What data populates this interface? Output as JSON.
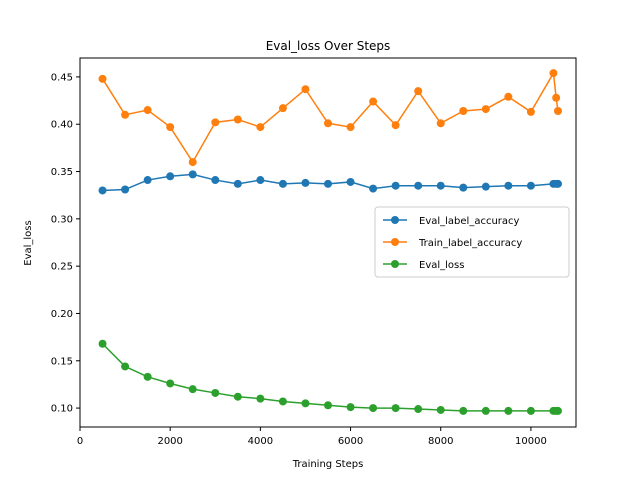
{
  "chart_data": {
    "type": "line",
    "title": "Eval_loss Over Steps",
    "xlabel": "Training Steps",
    "ylabel": "Eval_loss",
    "xlim": [
      0,
      11000
    ],
    "ylim": [
      0.08,
      0.47
    ],
    "x_ticks": [
      0,
      2000,
      4000,
      6000,
      8000,
      10000
    ],
    "y_ticks": [
      0.1,
      0.15,
      0.2,
      0.25,
      0.3,
      0.35,
      0.4,
      0.45
    ],
    "grid": false,
    "legend_position": "center-right",
    "x": [
      500,
      1000,
      1500,
      2000,
      2500,
      3000,
      3500,
      4000,
      4500,
      5000,
      5500,
      6000,
      6500,
      7000,
      7500,
      8000,
      8500,
      9000,
      9500,
      10000,
      10500,
      10560,
      10600
    ],
    "series": [
      {
        "name": "Eval_label_accuracy",
        "color": "#1f77b4",
        "values": [
          0.33,
          0.331,
          0.341,
          0.345,
          0.347,
          0.341,
          0.337,
          0.341,
          0.337,
          0.338,
          0.337,
          0.339,
          0.332,
          0.335,
          0.335,
          0.335,
          0.333,
          0.334,
          0.335,
          0.335,
          0.337,
          0.337,
          0.337
        ]
      },
      {
        "name": "Train_label_accuracy",
        "color": "#ff7f0e",
        "values": [
          0.448,
          0.41,
          0.415,
          0.397,
          0.36,
          0.402,
          0.405,
          0.397,
          0.417,
          0.437,
          0.401,
          0.397,
          0.424,
          0.399,
          0.435,
          0.401,
          0.414,
          0.416,
          0.429,
          0.413,
          0.454,
          0.428,
          0.414
        ]
      },
      {
        "name": "Eval_loss",
        "color": "#2ca02c",
        "values": [
          0.168,
          0.144,
          0.133,
          0.126,
          0.12,
          0.116,
          0.112,
          0.11,
          0.107,
          0.105,
          0.103,
          0.101,
          0.1,
          0.1,
          0.099,
          0.098,
          0.097,
          0.097,
          0.097,
          0.097,
          0.097,
          0.097,
          0.097
        ]
      }
    ]
  }
}
